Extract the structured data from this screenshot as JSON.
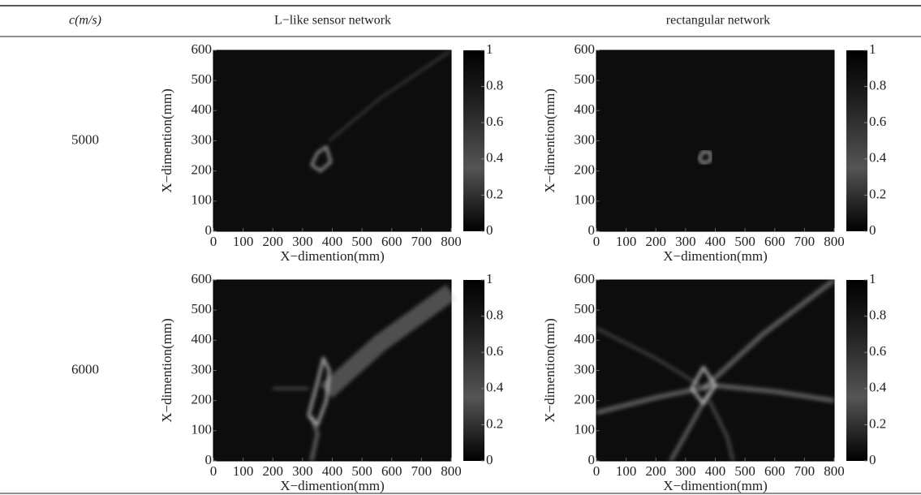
{
  "header": {
    "columns": [
      "c(m/s)",
      "L−like sensor network",
      "rectangular network"
    ]
  },
  "rows": [
    {
      "speed": "5000",
      "plots": [
        {
          "xlabel": "X−dimention(mm)",
          "ylabel": "X−dimention(mm)",
          "xlim": [
            0,
            800
          ],
          "ylim": [
            0,
            600
          ],
          "xticks": [
            0,
            100,
            200,
            300,
            400,
            500,
            600,
            700,
            800
          ],
          "yticks": [
            0,
            100,
            200,
            300,
            400,
            500,
            600
          ],
          "colorbar": {
            "lim": [
              0,
              1
            ],
            "ticks": [
              0,
              0.2,
              0.4,
              0.6,
              0.8,
              1
            ]
          }
        },
        {
          "xlabel": "X−dimention(mm)",
          "ylabel": "X−dimention(mm)",
          "xlim": [
            0,
            800
          ],
          "ylim": [
            0,
            600
          ],
          "xticks": [
            0,
            100,
            200,
            300,
            400,
            500,
            600,
            700,
            800
          ],
          "yticks": [
            0,
            100,
            200,
            300,
            400,
            500,
            600
          ],
          "colorbar": {
            "lim": [
              0,
              1
            ],
            "ticks": [
              0,
              0.2,
              0.4,
              0.6,
              0.8,
              1
            ]
          }
        }
      ]
    },
    {
      "speed": "6000",
      "plots": [
        {
          "xlabel": "X−dimention(mm)",
          "ylabel": "X−dimention(mm)",
          "xlim": [
            0,
            800
          ],
          "ylim": [
            0,
            600
          ],
          "xticks": [
            0,
            100,
            200,
            300,
            400,
            500,
            600,
            700,
            800
          ],
          "yticks": [
            0,
            100,
            200,
            300,
            400,
            500,
            600
          ],
          "colorbar": {
            "lim": [
              0,
              1
            ],
            "ticks": [
              0,
              0.2,
              0.4,
              0.6,
              0.8,
              1
            ]
          }
        },
        {
          "xlabel": "X−dimention(mm)",
          "ylabel": "X−dimention(mm)",
          "xlim": [
            0,
            800
          ],
          "ylim": [
            0,
            600
          ],
          "xticks": [
            0,
            100,
            200,
            300,
            400,
            500,
            600,
            700,
            800
          ],
          "yticks": [
            0,
            100,
            200,
            300,
            400,
            500,
            600
          ],
          "colorbar": {
            "lim": [
              0,
              1
            ],
            "ticks": [
              0,
              0.2,
              0.4,
              0.6,
              0.8,
              1
            ]
          }
        }
      ]
    }
  ]
}
